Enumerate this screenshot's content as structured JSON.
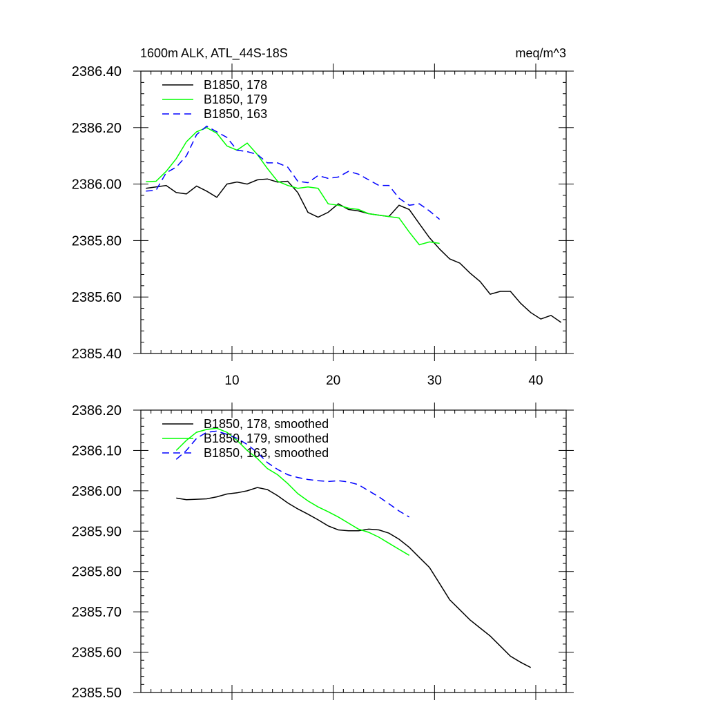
{
  "header": {
    "title": "1600m ALK, ATL_44S-18S",
    "units": "meq/m^3"
  },
  "chart_data": [
    {
      "type": "line",
      "xlim": [
        1,
        43
      ],
      "ylim": [
        2385.4,
        2386.4
      ],
      "x_ticks": [
        10,
        20,
        30,
        40
      ],
      "x_tick_labels": [
        "10",
        "20",
        "30",
        "40"
      ],
      "y_ticks": [
        2385.4,
        2385.6,
        2385.8,
        2386.0,
        2386.2,
        2386.4
      ],
      "y_tick_labels": [
        "2385.40",
        "2385.60",
        "2385.80",
        "2386.00",
        "2386.20",
        "2386.40"
      ],
      "legend_position": "top-left",
      "series": [
        {
          "name": "B1850, 178",
          "color": "#000000",
          "dash": "solid",
          "x": [
            1.5,
            2.5,
            3.5,
            4.5,
            5.5,
            6.5,
            7.5,
            8.5,
            9.5,
            10.5,
            11.5,
            12.5,
            13.5,
            14.5,
            15.5,
            16.5,
            17.5,
            18.5,
            19.5,
            20.5,
            21.5,
            22.5,
            23.5,
            24.5,
            25.5,
            26.5,
            27.5,
            28.5,
            29.5,
            30.5,
            31.5,
            32.5,
            33.5,
            34.5,
            35.5,
            36.5,
            37.5,
            38.5,
            39.5,
            40.5,
            41.5,
            42.5
          ],
          "y": [
            2385.985,
            2385.99,
            2385.995,
            2385.97,
            2385.965,
            2385.993,
            2385.975,
            2385.953,
            2386.0,
            2386.007,
            2386.0,
            2386.015,
            2386.018,
            2386.007,
            2386.01,
            2385.97,
            2385.9,
            2385.883,
            2385.9,
            2385.93,
            2385.91,
            2385.905,
            2385.895,
            2385.89,
            2385.885,
            2385.925,
            2385.91,
            2385.86,
            2385.81,
            2385.77,
            2385.735,
            2385.72,
            2385.685,
            2385.655,
            2385.61,
            2385.62,
            2385.62,
            2385.578,
            2385.545,
            2385.522,
            2385.535,
            2385.51
          ]
        },
        {
          "name": "B1850, 179",
          "color": "#00ff00",
          "dash": "solid",
          "x": [
            1.5,
            2.5,
            3.5,
            4.5,
            5.5,
            6.5,
            7.5,
            8.5,
            9.5,
            10.5,
            11.5,
            12.5,
            13.5,
            14.5,
            15.5,
            16.5,
            17.5,
            18.5,
            19.5,
            20.5,
            21.5,
            22.5,
            23.5,
            24.5,
            25.5,
            26.5,
            27.5,
            28.5,
            29.5,
            30.5
          ],
          "y": [
            2386.008,
            2386.01,
            2386.045,
            2386.09,
            2386.15,
            2386.185,
            2386.2,
            2386.18,
            2386.135,
            2386.12,
            2386.145,
            2386.105,
            2386.055,
            2386.01,
            2385.995,
            2385.985,
            2385.99,
            2385.985,
            2385.93,
            2385.925,
            2385.915,
            2385.91,
            2385.895,
            2385.89,
            2385.885,
            2385.88,
            2385.83,
            2385.785,
            2385.795,
            2385.79
          ]
        },
        {
          "name": "B1850, 163",
          "color": "#0000ff",
          "dash": "dashed",
          "x": [
            1.5,
            2.5,
            3.5,
            4.5,
            5.5,
            6.5,
            7.5,
            8.5,
            9.5,
            10.5,
            11.5,
            12.5,
            13.5,
            14.5,
            15.5,
            16.5,
            17.5,
            18.5,
            19.5,
            20.5,
            21.5,
            22.5,
            23.5,
            24.5,
            25.5,
            26.5,
            27.5,
            28.5,
            29.5,
            30.5
          ],
          "y": [
            2385.975,
            2385.978,
            2386.04,
            2386.06,
            2386.1,
            2386.175,
            2386.205,
            2386.185,
            2386.165,
            2386.12,
            2386.115,
            2386.105,
            2386.075,
            2386.075,
            2386.06,
            2386.01,
            2386.005,
            2386.03,
            2386.02,
            2386.025,
            2386.045,
            2386.035,
            2386.015,
            2385.995,
            2385.995,
            2385.95,
            2385.925,
            2385.93,
            2385.905,
            2385.875
          ]
        }
      ]
    },
    {
      "type": "line",
      "xlim": [
        1,
        43
      ],
      "ylim": [
        2385.5,
        2386.2
      ],
      "x_ticks": [
        10,
        20,
        30,
        40
      ],
      "y_ticks": [
        2385.5,
        2385.6,
        2385.7,
        2385.8,
        2385.9,
        2386.0,
        2386.1,
        2386.2
      ],
      "y_tick_labels": [
        "2385.50",
        "2385.60",
        "2385.70",
        "2385.80",
        "2385.90",
        "2386.00",
        "2386.10",
        "2386.20"
      ],
      "legend_position": "top-left",
      "series": [
        {
          "name": "B1850, 178, smoothed",
          "color": "#000000",
          "dash": "solid",
          "x": [
            4.5,
            5.5,
            6.5,
            7.5,
            8.5,
            9.5,
            10.5,
            11.5,
            12.5,
            13.5,
            14.5,
            15.5,
            16.5,
            17.5,
            18.5,
            19.5,
            20.5,
            21.5,
            22.5,
            23.5,
            24.5,
            25.5,
            26.5,
            27.5,
            28.5,
            29.5,
            30.5,
            31.5,
            32.5,
            33.5,
            34.5,
            35.5,
            36.5,
            37.5,
            38.5,
            39.5
          ],
          "y": [
            2385.982,
            2385.978,
            2385.979,
            2385.98,
            2385.985,
            2385.992,
            2385.995,
            2386.0,
            2386.008,
            2386.003,
            2385.988,
            2385.97,
            2385.955,
            2385.942,
            2385.928,
            2385.913,
            2385.903,
            2385.901,
            2385.901,
            2385.905,
            2385.903,
            2385.895,
            2385.88,
            2385.86,
            2385.835,
            2385.81,
            2385.77,
            2385.73,
            2385.705,
            2385.68,
            2385.66,
            2385.64,
            2385.615,
            2385.59,
            2385.575,
            2385.562
          ]
        },
        {
          "name": "B1850, 179, smoothed",
          "color": "#00ff00",
          "dash": "solid",
          "x": [
            4.5,
            5.5,
            6.5,
            7.5,
            8.5,
            9.5,
            10.5,
            11.5,
            12.5,
            13.5,
            14.5,
            15.5,
            16.5,
            17.5,
            18.5,
            19.5,
            20.5,
            21.5,
            22.5,
            23.5,
            24.5,
            25.5,
            26.5,
            27.5
          ],
          "y": [
            2386.1,
            2386.125,
            2386.145,
            2386.152,
            2386.155,
            2386.145,
            2386.125,
            2386.1,
            2386.08,
            2386.055,
            2386.04,
            2386.018,
            2385.993,
            2385.975,
            2385.96,
            2385.948,
            2385.935,
            2385.92,
            2385.905,
            2385.897,
            2385.885,
            2385.87,
            2385.855,
            2385.84
          ]
        },
        {
          "name": "B1850, 163, smoothed",
          "color": "#0000ff",
          "dash": "dashed",
          "x": [
            4.5,
            5.5,
            6.5,
            7.5,
            8.5,
            9.5,
            10.5,
            11.5,
            12.5,
            13.5,
            14.5,
            15.5,
            16.5,
            17.5,
            18.5,
            19.5,
            20.5,
            21.5,
            22.5,
            23.5,
            24.5,
            25.5,
            26.5,
            27.5
          ],
          "y": [
            2386.078,
            2386.1,
            2386.13,
            2386.145,
            2386.148,
            2386.14,
            2386.13,
            2386.115,
            2386.095,
            2386.07,
            2386.053,
            2386.04,
            2386.033,
            2386.028,
            2386.025,
            2386.023,
            2386.025,
            2386.022,
            2386.015,
            2386.0,
            2385.985,
            2385.968,
            2385.95,
            2385.935
          ]
        }
      ]
    }
  ]
}
